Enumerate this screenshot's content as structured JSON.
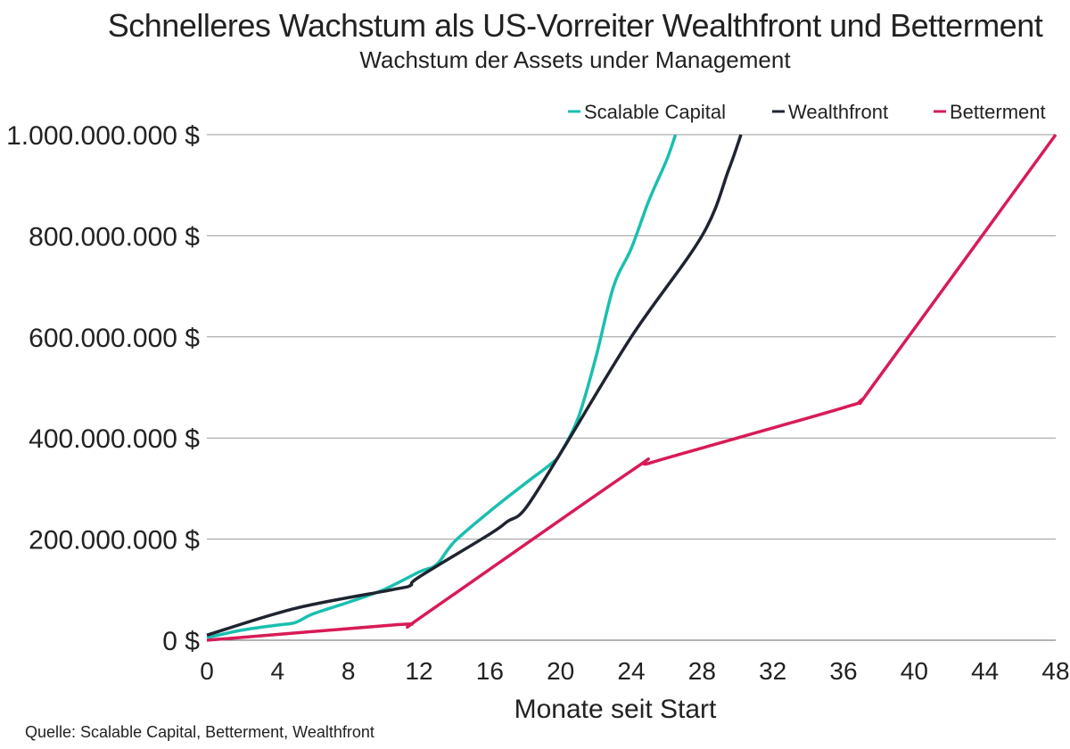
{
  "title": "Schnelleres Wachstum als US-Vorreiter Wealthfront und Betterment",
  "subtitle": "Wachstum der Assets under Management",
  "source": "Quelle: Scalable Capital, Betterment, Wealthfront",
  "chart_data": {
    "type": "line",
    "title": "Schnelleres Wachstum als US-Vorreiter Wealthfront und Betterment",
    "subtitle": "Wachstum der Assets under Management",
    "xlabel": "Monate seit Start",
    "ylabel": "",
    "xlim": [
      0,
      48
    ],
    "ylim": [
      0,
      1000000000
    ],
    "grid": true,
    "legend_position": "top-right",
    "x_ticks": [
      0,
      4,
      8,
      12,
      16,
      20,
      24,
      28,
      32,
      36,
      40,
      44,
      48
    ],
    "x_tick_labels": [
      "0",
      "4",
      "8",
      "12",
      "16",
      "20",
      "24",
      "28",
      "32",
      "36",
      "40",
      "44",
      "48"
    ],
    "y_ticks": [
      0,
      200000000,
      400000000,
      600000000,
      800000000,
      1000000000
    ],
    "y_tick_labels": [
      "0 $",
      "200.000.000 $",
      "400.000.000 $",
      "600.000.000 $",
      "800.000.000 $",
      "1.000.000.000 $"
    ],
    "series": [
      {
        "name": "Scalable Capital",
        "color": "#1ABFB0",
        "x": [
          0,
          2,
          4,
          5,
          6,
          8,
          10,
          12,
          13,
          14,
          16,
          18,
          19.5,
          20,
          21,
          22,
          23,
          24,
          25,
          26,
          26.5
        ],
        "y": [
          5000000,
          20000000,
          30000000,
          35000000,
          52000000,
          75000000,
          100000000,
          135000000,
          150000000,
          195000000,
          255000000,
          310000000,
          350000000,
          370000000,
          440000000,
          560000000,
          700000000,
          775000000,
          870000000,
          950000000,
          1000000000
        ]
      },
      {
        "name": "Wealthfront",
        "color": "#1F2430",
        "x": [
          0,
          5,
          10.5,
          11.5,
          12,
          16,
          17,
          18,
          20,
          24,
          28,
          29.5,
          30.2
        ],
        "y": [
          10000000,
          63000000,
          100000000,
          108000000,
          125000000,
          210000000,
          235000000,
          260000000,
          370000000,
          600000000,
          800000000,
          930000000,
          1000000000
        ]
      },
      {
        "name": "Betterment",
        "color": "#D81B57",
        "x": [
          0,
          10.5,
          11.5,
          12.5,
          24,
          25,
          30,
          36,
          37,
          38,
          48
        ],
        "y": [
          0,
          30000000,
          32000000,
          55000000,
          335000000,
          350000000,
          400000000,
          460000000,
          475000000,
          520000000,
          1000000000
        ]
      }
    ]
  }
}
